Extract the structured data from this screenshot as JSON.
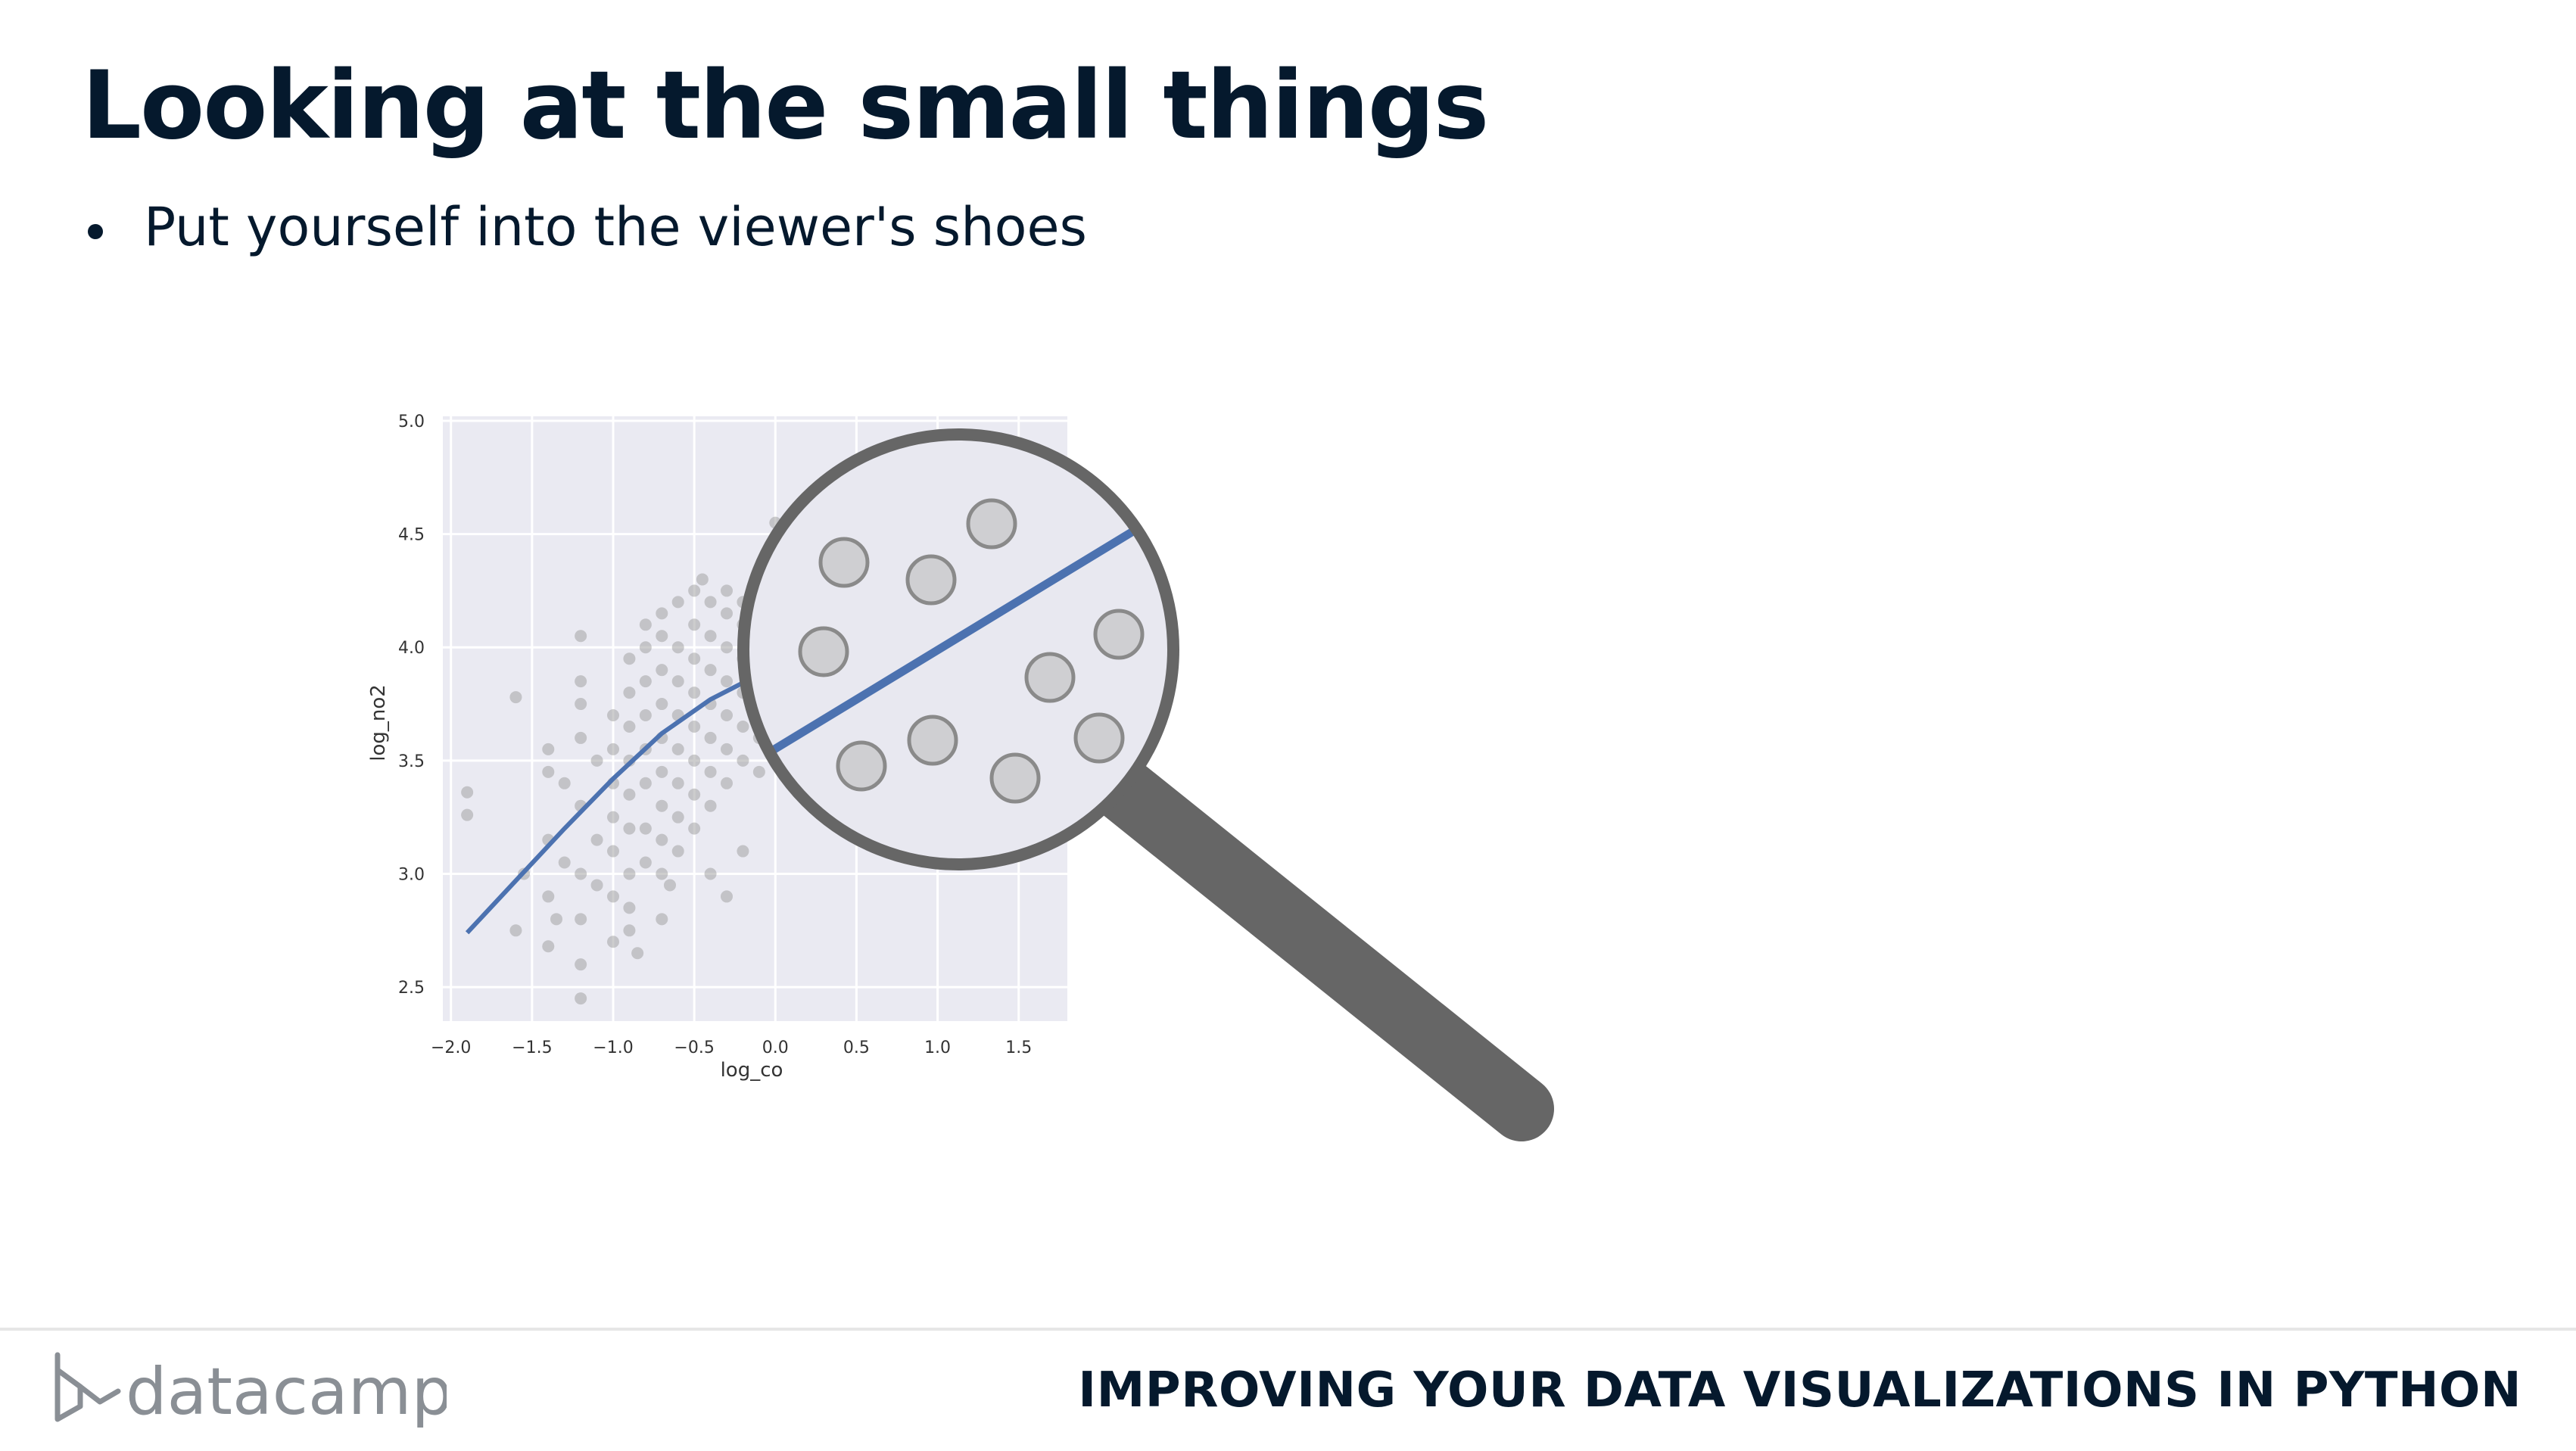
{
  "slide": {
    "title": "Looking at the small things",
    "bullets": [
      "Put yourself into the viewer's shoes"
    ]
  },
  "footer": {
    "brand": "datacamp",
    "course": "IMPROVING YOUR DATA VISUALIZATIONS IN PYTHON"
  },
  "chart_data": {
    "type": "scatter",
    "xlabel": "log_co",
    "ylabel": "log_no2",
    "xlim": [
      -2.05,
      1.8
    ],
    "ylim": [
      2.35,
      5.02
    ],
    "xticks": [
      "-2.0",
      "-1.5",
      "-1.0",
      "-0.5",
      "0.0",
      "0.5",
      "1.0",
      "1.5"
    ],
    "yticks": [
      "2.5",
      "3.0",
      "3.5",
      "4.0",
      "4.5",
      "5.0"
    ],
    "grid": true,
    "background": "#eaeaf2",
    "point_color": "#9b9b9b",
    "line_color": "#4c72b0",
    "trend_line": [
      [
        -1.9,
        2.74
      ],
      [
        -1.6,
        2.97
      ],
      [
        -1.3,
        3.2
      ],
      [
        -1.0,
        3.42
      ],
      [
        -0.7,
        3.62
      ],
      [
        -0.4,
        3.77
      ],
      [
        -0.1,
        3.88
      ],
      [
        0.5,
        4.14
      ],
      [
        1.0,
        4.38
      ],
      [
        1.45,
        4.58
      ]
    ],
    "points": [
      [
        -1.9,
        3.26
      ],
      [
        -1.9,
        3.36
      ],
      [
        -1.6,
        2.75
      ],
      [
        -1.6,
        3.78
      ],
      [
        -1.55,
        3.0
      ],
      [
        -1.4,
        2.68
      ],
      [
        -1.4,
        2.9
      ],
      [
        -1.4,
        3.15
      ],
      [
        -1.4,
        3.45
      ],
      [
        -1.4,
        3.55
      ],
      [
        -1.2,
        2.6
      ],
      [
        -1.2,
        2.8
      ],
      [
        -1.2,
        3.0
      ],
      [
        -1.2,
        3.3
      ],
      [
        -1.2,
        3.6
      ],
      [
        -1.2,
        3.85
      ],
      [
        -1.2,
        4.05
      ],
      [
        -1.2,
        2.45
      ],
      [
        -1.2,
        3.75
      ],
      [
        -1.0,
        2.7
      ],
      [
        -1.0,
        2.9
      ],
      [
        -1.0,
        3.1
      ],
      [
        -1.0,
        3.25
      ],
      [
        -1.0,
        3.4
      ],
      [
        -1.0,
        3.55
      ],
      [
        -1.0,
        3.7
      ],
      [
        -0.9,
        2.85
      ],
      [
        -0.9,
        3.0
      ],
      [
        -0.9,
        3.2
      ],
      [
        -0.9,
        3.35
      ],
      [
        -0.9,
        3.5
      ],
      [
        -0.9,
        3.65
      ],
      [
        -0.9,
        3.8
      ],
      [
        -0.9,
        3.95
      ],
      [
        -0.9,
        2.75
      ],
      [
        -0.8,
        3.05
      ],
      [
        -0.8,
        3.2
      ],
      [
        -0.8,
        3.4
      ],
      [
        -0.8,
        3.55
      ],
      [
        -0.8,
        3.7
      ],
      [
        -0.8,
        3.85
      ],
      [
        -0.8,
        4.0
      ],
      [
        -0.8,
        4.1
      ],
      [
        -0.7,
        2.8
      ],
      [
        -0.7,
        3.0
      ],
      [
        -0.7,
        3.15
      ],
      [
        -0.7,
        3.3
      ],
      [
        -0.7,
        3.45
      ],
      [
        -0.7,
        3.6
      ],
      [
        -0.7,
        3.75
      ],
      [
        -0.7,
        3.9
      ],
      [
        -0.7,
        4.05
      ],
      [
        -0.7,
        4.15
      ],
      [
        -0.6,
        3.1
      ],
      [
        -0.6,
        3.25
      ],
      [
        -0.6,
        3.4
      ],
      [
        -0.6,
        3.55
      ],
      [
        -0.6,
        3.7
      ],
      [
        -0.6,
        3.85
      ],
      [
        -0.6,
        4.0
      ],
      [
        -0.6,
        4.2
      ],
      [
        -0.5,
        3.2
      ],
      [
        -0.5,
        3.35
      ],
      [
        -0.5,
        3.5
      ],
      [
        -0.5,
        3.65
      ],
      [
        -0.5,
        3.8
      ],
      [
        -0.5,
        3.95
      ],
      [
        -0.5,
        4.1
      ],
      [
        -0.5,
        4.25
      ],
      [
        -0.4,
        3.0
      ],
      [
        -0.4,
        3.3
      ],
      [
        -0.4,
        3.45
      ],
      [
        -0.4,
        3.6
      ],
      [
        -0.4,
        3.75
      ],
      [
        -0.4,
        3.9
      ],
      [
        -0.4,
        4.05
      ],
      [
        -0.4,
        4.2
      ],
      [
        -0.3,
        2.9
      ],
      [
        -0.3,
        3.4
      ],
      [
        -0.3,
        3.55
      ],
      [
        -0.3,
        3.7
      ],
      [
        -0.3,
        3.85
      ],
      [
        -0.3,
        4.0
      ],
      [
        -0.3,
        4.15
      ],
      [
        -0.3,
        4.25
      ],
      [
        -0.2,
        3.5
      ],
      [
        -0.2,
        3.65
      ],
      [
        -0.2,
        3.8
      ],
      [
        -0.2,
        3.95
      ],
      [
        -0.2,
        4.1
      ],
      [
        -0.2,
        4.2
      ],
      [
        -0.1,
        3.45
      ],
      [
        -0.1,
        3.6
      ],
      [
        -0.1,
        3.75
      ],
      [
        -0.1,
        3.9
      ],
      [
        -0.2,
        3.1
      ],
      [
        0.0,
        3.5
      ],
      [
        -1.1,
        2.95
      ],
      [
        -1.1,
        3.15
      ],
      [
        -1.1,
        3.5
      ],
      [
        -1.3,
        3.05
      ],
      [
        -1.3,
        3.4
      ],
      [
        -1.35,
        2.8
      ],
      [
        -0.85,
        2.65
      ],
      [
        -0.65,
        2.95
      ],
      [
        -0.45,
        4.3
      ],
      [
        0.0,
        4.55
      ]
    ],
    "magnifier": {
      "lens_color": "#e8e8f0",
      "rim_color": "#666666",
      "handle_color": "#666666",
      "circle_fill": "#cfcfd2",
      "circle_stroke": "#8a8a8a"
    }
  }
}
